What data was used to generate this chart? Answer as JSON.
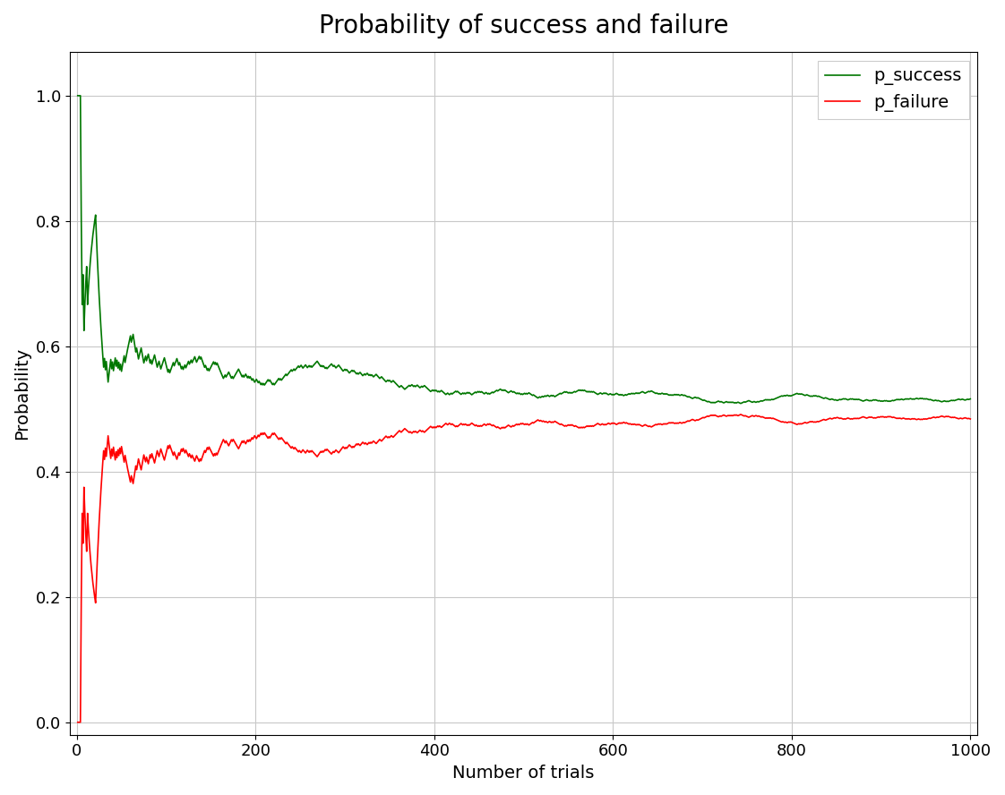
{
  "n_trials": 1000,
  "seed": 7,
  "title": "Probability of success and failure",
  "xlabel": "Number of trials",
  "ylabel": "Probability",
  "success_color": "#007700",
  "failure_color": "#ff0000",
  "success_label": "p_success",
  "failure_label": "p_failure",
  "ylim": [
    -0.02,
    1.07
  ],
  "xlim": [
    -8,
    1008
  ],
  "yticks": [
    0.0,
    0.2,
    0.4,
    0.6,
    0.8,
    1.0
  ],
  "xticks": [
    0,
    200,
    400,
    600,
    800,
    1000
  ],
  "grid_color": "#c8c8c8",
  "bg_color": "#ffffff",
  "line_width": 1.2,
  "title_fontsize": 20,
  "label_fontsize": 14,
  "tick_fontsize": 13,
  "legend_fontsize": 14
}
